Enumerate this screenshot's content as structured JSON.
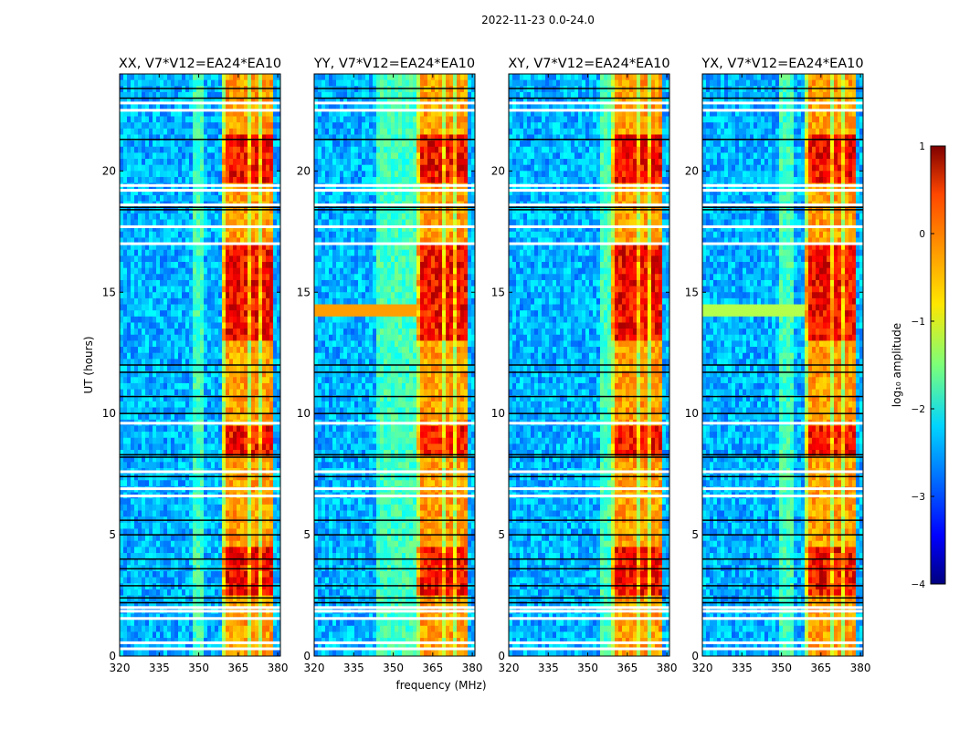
{
  "chart_data": {
    "type": "heatmap",
    "suptitle": "2022-11-23 0.0-24.0",
    "xlabel": "frequency (MHz)",
    "ylabel": "UT (hours)",
    "xlim": [
      320,
      381
    ],
    "ylim": [
      0,
      24
    ],
    "x_ticks": [
      320,
      335,
      350,
      365,
      380
    ],
    "x_tick_labels": [
      "320",
      "335",
      "350",
      "365",
      "380"
    ],
    "y_ticks": [
      0,
      5,
      10,
      15,
      20
    ],
    "y_tick_labels": [
      "0",
      "5",
      "10",
      "15",
      "20"
    ],
    "colorbar": {
      "label": "log₁₀ amplitude",
      "range": [
        -4,
        1
      ],
      "ticks": [
        1,
        0,
        -1,
        -2,
        -3,
        -4
      ],
      "tick_labels": [
        "1",
        "0",
        "−1",
        "−2",
        "−3",
        "−4"
      ],
      "colormap": "jet",
      "stops": [
        "#00007f",
        "#0000ff",
        "#00d4ff",
        "#7cff79",
        "#ffe600",
        "#ff4700",
        "#7f0000"
      ]
    },
    "panels": [
      {
        "title": "XX, V7*V12=EA24*EA10",
        "band_start_mhz": 359,
        "band_end_mhz": 378,
        "secondary_band_mhz": [
          348,
          352
        ]
      },
      {
        "title": "YY, V7*V12=EA24*EA10",
        "band_start_mhz": 359,
        "band_end_mhz": 378,
        "secondary_band_mhz": [
          344,
          359
        ]
      },
      {
        "title": "XY, V7*V12=EA24*EA10",
        "band_start_mhz": 359,
        "band_end_mhz": 378,
        "secondary_band_mhz": [
          355,
          359
        ]
      },
      {
        "title": "YX, V7*V12=EA24*EA10",
        "band_start_mhz": 359,
        "band_end_mhz": 378,
        "secondary_band_mhz": [
          349,
          355
        ]
      }
    ],
    "flagged_hours_white": [
      0.3,
      0.55,
      1.55,
      1.85,
      2.0,
      6.6,
      6.9,
      7.6,
      9.6,
      17.0,
      17.7,
      18.6,
      19.2,
      19.4,
      22.5,
      22.8
    ],
    "flagged_hours_black": [
      2.2,
      2.4,
      2.9,
      3.6,
      4.0,
      5.0,
      5.6,
      7.4,
      8.2,
      8.3,
      10.0,
      10.7,
      11.7,
      12.0,
      18.4,
      18.5,
      21.3,
      23.0,
      23.4
    ]
  }
}
